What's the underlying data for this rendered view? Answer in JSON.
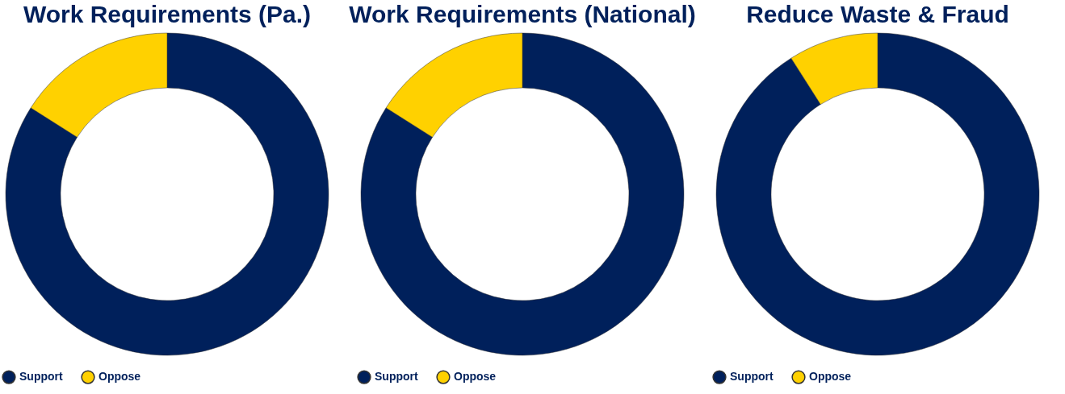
{
  "chart_data": [
    {
      "type": "donut",
      "title": "Work Requirements (Pa.)",
      "categories": [
        "Support",
        "Oppose"
      ],
      "values": [
        84,
        16
      ],
      "colors": [
        "#00205b",
        "#ffd100"
      ],
      "legend": "bottom"
    },
    {
      "type": "donut",
      "title": "Work Requirements (National)",
      "categories": [
        "Support",
        "Oppose"
      ],
      "values": [
        84,
        16
      ],
      "colors": [
        "#00205b",
        "#ffd100"
      ],
      "legend": "bottom"
    },
    {
      "type": "donut",
      "title": "Reduce Waste & Fraud",
      "categories": [
        "Support",
        "Oppose"
      ],
      "values": [
        91,
        9
      ],
      "colors": [
        "#00205b",
        "#ffd100"
      ],
      "legend": "bottom"
    }
  ]
}
